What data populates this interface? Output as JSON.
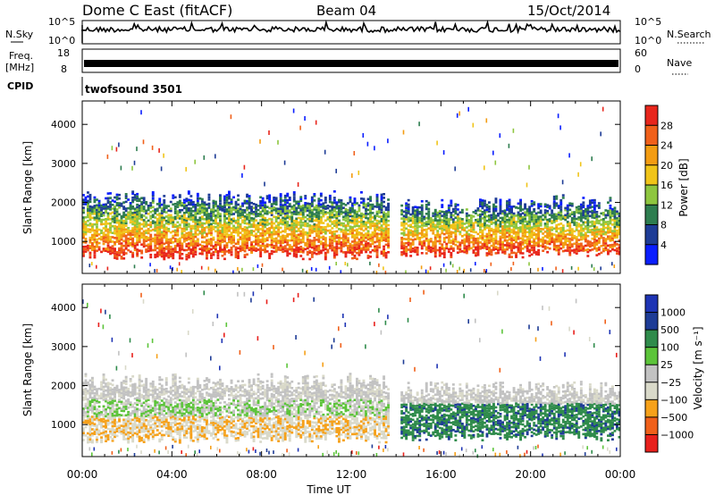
{
  "header": {
    "title": "Dome C East (fitACF)",
    "beam": "Beam 04",
    "date": "15/Oct/2014"
  },
  "nsky": {
    "label": "N.Sky",
    "right_label": "N.Search",
    "tick_top": "10^5",
    "tick_bottom": "10^0",
    "right_tick_top": "10^5",
    "right_tick_bottom": "10^0"
  },
  "freq": {
    "label_line1": "Freq.",
    "label_line2": "[MHz]",
    "tick_top": "18",
    "tick_bottom": "8",
    "right_label": "Nave",
    "right_tick_top": "60",
    "right_tick_bottom": "0"
  },
  "cpid": {
    "label": "CPID",
    "program": "twofsound 3501"
  },
  "colors": {
    "power": [
      "#0a1eff",
      "#1e3c96",
      "#2e7d4f",
      "#8ec63f",
      "#f0c419",
      "#f39c12",
      "#f0601a",
      "#e8261c"
    ],
    "velocity": [
      "#e8201c",
      "#f0601a",
      "#f6a11a",
      "#d9d9c9",
      "#c2c2c2",
      "#5cc43a",
      "#2f8b4b",
      "#1e3c96",
      "#1e34b4"
    ]
  },
  "chart_data": [
    {
      "type": "heatmap",
      "name": "power",
      "ylabel": "Slant Range [km]",
      "xlabel": "Time UT",
      "x_ticks": [
        "00:00",
        "04:00",
        "08:00",
        "12:00",
        "16:00",
        "20:00",
        "00:00"
      ],
      "x_range_hours": [
        0,
        24
      ],
      "y_ticks": [
        "1000",
        "2000",
        "3000",
        "4000"
      ],
      "y_tick_values": [
        1000,
        2000,
        3000,
        4000
      ],
      "y_range_km": [
        180,
        4600
      ],
      "colorbar": {
        "label": "Power [dB]",
        "ticks": [
          "4",
          "8",
          "12",
          "16",
          "20",
          "24",
          "28"
        ],
        "range": [
          0,
          32
        ]
      },
      "data_gap_hours": [
        13.7,
        14.2
      ],
      "echo_bands": [
        {
          "x_start": 0,
          "x_end": 13.7,
          "y_low_km": 600,
          "y_high_km": 2300
        },
        {
          "x_start": 14.2,
          "x_end": 24,
          "y_low_km": 650,
          "y_high_km": 2100
        },
        {
          "x_start": 18.5,
          "x_end": 23.5,
          "y_low_km": 1900,
          "y_high_km": 2200
        }
      ]
    },
    {
      "type": "heatmap",
      "name": "velocity",
      "ylabel": "Slant Range [km]",
      "xlabel": "Time UT",
      "x_ticks": [
        "00:00",
        "04:00",
        "08:00",
        "12:00",
        "16:00",
        "20:00",
        "00:00"
      ],
      "y_ticks": [
        "1000",
        "2000",
        "3000",
        "4000"
      ],
      "y_tick_values": [
        1000,
        2000,
        3000,
        4000
      ],
      "y_range_km": [
        180,
        4600
      ],
      "colorbar": {
        "label": "Velocity [m s⁻¹]",
        "ticks": [
          "1000",
          "500",
          "100",
          "25",
          "−25",
          "−100",
          "−500",
          "−1000"
        ]
      },
      "data_gap_hours": [
        13.7,
        14.2
      ],
      "echo_bands": [
        {
          "x_start": 0,
          "x_end": 13.7,
          "y_low_km": 600,
          "y_high_km": 2300
        },
        {
          "x_start": 14.2,
          "x_end": 24,
          "y_low_km": 650,
          "y_high_km": 2100
        }
      ]
    }
  ],
  "xaxis_label": "Time UT"
}
